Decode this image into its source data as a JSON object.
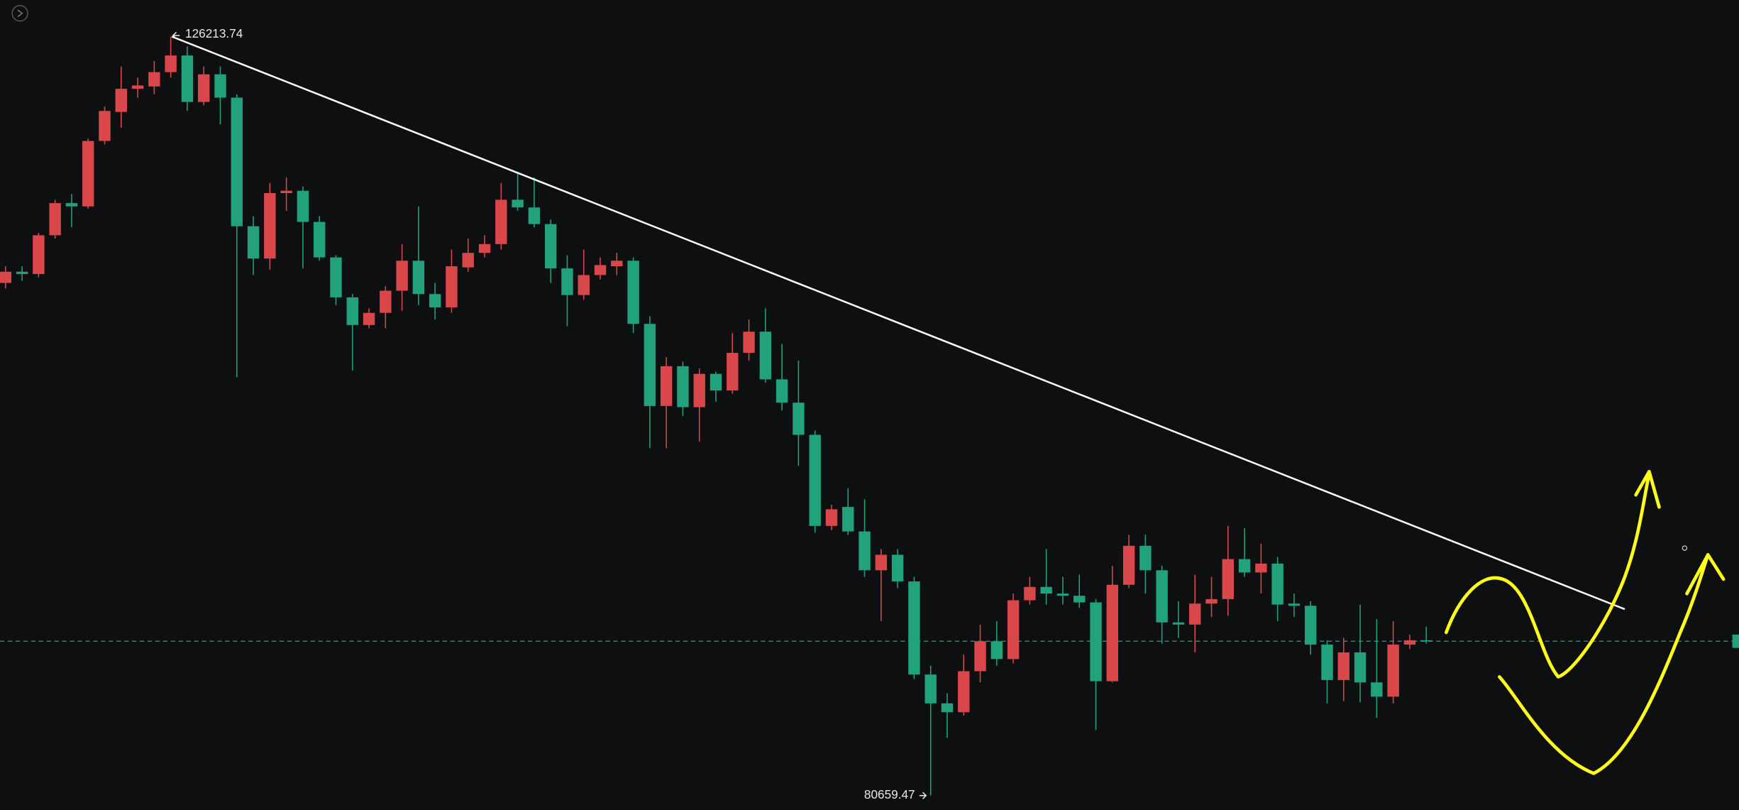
{
  "chart_data": {
    "type": "candlestick",
    "up_color": "#d9474a",
    "down_color": "#22a27c",
    "background": "#0e0f11",
    "ylim": [
      79790,
      128410
    ],
    "high_label": "126213.74",
    "low_label": "80659.47",
    "price_line": 89920,
    "price_line_color": "#22a27c",
    "open": [
      111430,
      112100,
      111960,
      114290,
      116220,
      116020,
      119950,
      121690,
      123080,
      123220,
      124080,
      125080,
      122290,
      123950,
      122550,
      114830,
      112890,
      116820,
      116960,
      115090,
      112960,
      110560,
      108900,
      109630,
      110960,
      112760,
      110760,
      109960,
      112360,
      113230,
      113760,
      116420,
      115960,
      114960,
      112300,
      110700,
      111900,
      112430,
      112760,
      108970,
      104040,
      106430,
      103970,
      105970,
      104970,
      107230,
      108500,
      105640,
      104240,
      102310,
      96840,
      97980,
      96510,
      94180,
      95110,
      93510,
      87920,
      86190,
      85660,
      88120,
      89920,
      88850,
      92380,
      93180,
      92780,
      92650,
      92250,
      87520,
      93310,
      95650,
      94180,
      91050,
      90920,
      92180,
      92450,
      94850,
      94050,
      94580,
      92180,
      92050,
      89720,
      87590,
      89250,
      87450,
      86590,
      89720,
      89980
    ],
    "high": [
      112430,
      112430,
      114430,
      116420,
      116760,
      120090,
      122020,
      124420,
      123750,
      124750,
      126213.74,
      125620,
      124420,
      124420,
      122750,
      115430,
      117420,
      117760,
      117220,
      115430,
      113090,
      110760,
      109900,
      111230,
      113760,
      116020,
      111430,
      113430,
      114090,
      114290,
      117420,
      118090,
      117760,
      115230,
      113090,
      113430,
      112960,
      113230,
      112960,
      109430,
      106970,
      106700,
      106300,
      106100,
      108430,
      109230,
      109900,
      107770,
      106770,
      102570,
      98110,
      99110,
      98440,
      95450,
      95450,
      93780,
      88450,
      86790,
      89120,
      90920,
      91120,
      92780,
      93780,
      95450,
      93780,
      93910,
      92450,
      94450,
      96310,
      96310,
      94450,
      92320,
      93910,
      93780,
      96840,
      96710,
      95780,
      94980,
      92780,
      92320,
      89980,
      90120,
      92120,
      91250,
      91120,
      90320,
      90780
    ],
    "low": [
      111100,
      111560,
      111760,
      114090,
      114760,
      115890,
      119750,
      120750,
      122550,
      122750,
      123750,
      121750,
      122090,
      120950,
      105770,
      111900,
      112230,
      115760,
      112300,
      112760,
      110100,
      106170,
      108700,
      108700,
      109760,
      110100,
      109230,
      109630,
      112100,
      112960,
      113430,
      115760,
      114760,
      111430,
      108830,
      110430,
      111630,
      111900,
      108430,
      101510,
      101510,
      103440,
      101910,
      104300,
      104770,
      106770,
      105440,
      103770,
      100440,
      96440,
      96580,
      96310,
      93780,
      91120,
      93110,
      87650,
      80659.47,
      84120,
      85460,
      87450,
      88450,
      88590,
      92120,
      92120,
      92120,
      91920,
      84590,
      87450,
      93110,
      92780,
      89780,
      90120,
      89250,
      91380,
      91450,
      93780,
      92780,
      91120,
      91380,
      89120,
      86190,
      86320,
      86250,
      85320,
      86190,
      89450,
      89780
    ],
    "close": [
      112100,
      111960,
      114290,
      116220,
      116020,
      119950,
      121750,
      123080,
      123280,
      124080,
      125080,
      122290,
      123950,
      122550,
      114830,
      112890,
      116820,
      116960,
      115090,
      112960,
      110560,
      108900,
      109630,
      110960,
      112760,
      110760,
      109960,
      112430,
      113230,
      113760,
      116420,
      115960,
      114960,
      112300,
      110700,
      111900,
      112500,
      112760,
      108970,
      104040,
      106430,
      103970,
      105970,
      104970,
      107230,
      108500,
      105640,
      104240,
      102310,
      96840,
      97840,
      96510,
      94180,
      95110,
      93510,
      87920,
      86190,
      85660,
      88120,
      89920,
      88850,
      92380,
      93180,
      92780,
      92650,
      92250,
      87520,
      93310,
      95650,
      94180,
      91050,
      90920,
      92180,
      92450,
      94850,
      94050,
      94580,
      92120,
      92050,
      89720,
      87590,
      89250,
      87450,
      86590,
      89720,
      89980,
      89920
    ]
  }
}
